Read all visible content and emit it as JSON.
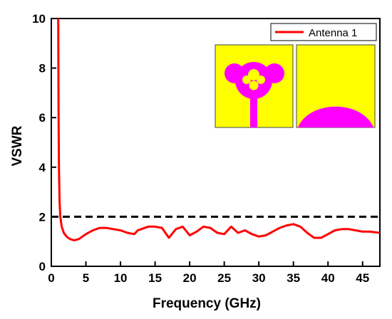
{
  "chart_data": {
    "type": "line",
    "xlabel": "Frequency (GHz)",
    "ylabel": "VSWR",
    "xlim": [
      0,
      47.5
    ],
    "ylim": [
      0,
      10
    ],
    "xticks": [
      0,
      5,
      10,
      15,
      20,
      25,
      30,
      35,
      40,
      45
    ],
    "yticks": [
      0,
      2,
      4,
      6,
      8,
      10
    ],
    "grid": false,
    "legend_position": "top-right",
    "series": [
      {
        "name": "Antenna 1",
        "color": "#ff0000",
        "style": "solid",
        "x": [
          1.0,
          1.05,
          1.1,
          1.2,
          1.3,
          1.5,
          1.8,
          2.2,
          2.7,
          3.3,
          4.0,
          5.0,
          6.0,
          7.0,
          8.0,
          9.0,
          10.0,
          11.0,
          12.0,
          12.5,
          13.0,
          14.0,
          15.0,
          16.0,
          17.0,
          18.0,
          19.0,
          20.0,
          21.0,
          22.0,
          23.0,
          24.0,
          25.0,
          26.0,
          27.0,
          28.0,
          29.0,
          30.0,
          31.0,
          32.0,
          33.0,
          34.0,
          35.0,
          36.0,
          37.0,
          38.0,
          39.0,
          40.0,
          41.0,
          42.0,
          43.0,
          44.0,
          45.0,
          46.0,
          47.5
        ],
        "y": [
          10.0,
          6.0,
          4.0,
          2.6,
          2.0,
          1.6,
          1.35,
          1.2,
          1.1,
          1.05,
          1.1,
          1.3,
          1.45,
          1.55,
          1.55,
          1.5,
          1.45,
          1.35,
          1.3,
          1.45,
          1.5,
          1.6,
          1.6,
          1.55,
          1.15,
          1.5,
          1.6,
          1.25,
          1.4,
          1.6,
          1.55,
          1.35,
          1.3,
          1.6,
          1.35,
          1.45,
          1.3,
          1.2,
          1.25,
          1.4,
          1.55,
          1.65,
          1.7,
          1.6,
          1.35,
          1.15,
          1.15,
          1.3,
          1.45,
          1.5,
          1.5,
          1.45,
          1.4,
          1.4,
          1.35
        ]
      },
      {
        "name": "",
        "color": "#000000",
        "style": "dashed",
        "x": [
          0,
          47.5
        ],
        "y": [
          2,
          2
        ]
      }
    ]
  }
}
